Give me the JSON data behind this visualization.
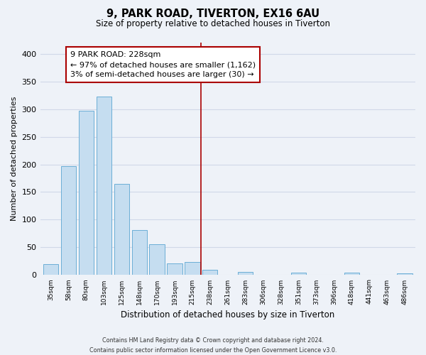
{
  "title": "9, PARK ROAD, TIVERTON, EX16 6AU",
  "subtitle": "Size of property relative to detached houses in Tiverton",
  "xlabel": "Distribution of detached houses by size in Tiverton",
  "ylabel": "Number of detached properties",
  "bar_labels": [
    "35sqm",
    "58sqm",
    "80sqm",
    "103sqm",
    "125sqm",
    "148sqm",
    "170sqm",
    "193sqm",
    "215sqm",
    "238sqm",
    "261sqm",
    "283sqm",
    "306sqm",
    "328sqm",
    "351sqm",
    "373sqm",
    "396sqm",
    "418sqm",
    "441sqm",
    "463sqm",
    "486sqm"
  ],
  "bar_values": [
    20,
    197,
    297,
    323,
    165,
    82,
    56,
    21,
    24,
    9,
    0,
    6,
    0,
    0,
    5,
    0,
    0,
    5,
    0,
    0,
    3
  ],
  "bar_color": "#c5ddf0",
  "bar_edge_color": "#6baed6",
  "vline_x": 8.5,
  "vline_color": "#aa0000",
  "annotation_title": "9 PARK ROAD: 228sqm",
  "annotation_line1": "← 97% of detached houses are smaller (1,162)",
  "annotation_line2": "3% of semi-detached houses are larger (30) →",
  "annotation_box_color": "#ffffff",
  "annotation_box_edge": "#aa0000",
  "ylim": [
    0,
    420
  ],
  "yticks": [
    0,
    50,
    100,
    150,
    200,
    250,
    300,
    350,
    400
  ],
  "footer_line1": "Contains HM Land Registry data © Crown copyright and database right 2024.",
  "footer_line2": "Contains public sector information licensed under the Open Government Licence v3.0.",
  "bg_color": "#eef2f8",
  "grid_color": "#d0d8e8"
}
